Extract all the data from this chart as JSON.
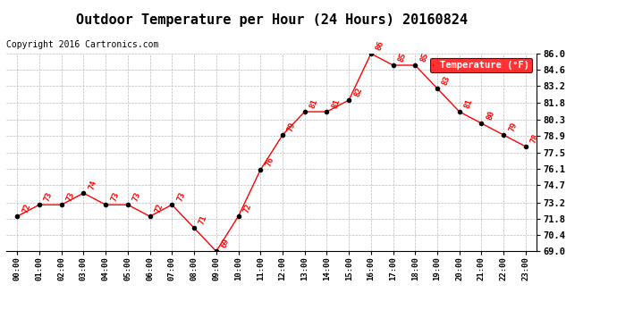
{
  "title": "Outdoor Temperature per Hour (24 Hours) 20160824",
  "copyright": "Copyright 2016 Cartronics.com",
  "legend_label": "Temperature (°F)",
  "hours": [
    0,
    1,
    2,
    3,
    4,
    5,
    6,
    7,
    8,
    9,
    10,
    11,
    12,
    13,
    14,
    15,
    16,
    17,
    18,
    19,
    20,
    21,
    22,
    23
  ],
  "temps": [
    72,
    73,
    73,
    74,
    73,
    73,
    72,
    73,
    71,
    69,
    72,
    76,
    79,
    81,
    81,
    82,
    86,
    85,
    85,
    83,
    81,
    80,
    79,
    78
  ],
  "xlabels": [
    "00:00",
    "01:00",
    "02:00",
    "03:00",
    "04:00",
    "05:00",
    "06:00",
    "07:00",
    "08:00",
    "09:00",
    "10:00",
    "11:00",
    "12:00",
    "13:00",
    "14:00",
    "15:00",
    "16:00",
    "17:00",
    "18:00",
    "19:00",
    "20:00",
    "21:00",
    "22:00",
    "23:00"
  ],
  "ylim": [
    69.0,
    86.0
  ],
  "yticks": [
    69.0,
    70.4,
    71.8,
    73.2,
    74.7,
    76.1,
    77.5,
    78.9,
    80.3,
    81.8,
    83.2,
    84.6,
    86.0
  ],
  "line_color": "red",
  "marker_color": "black",
  "label_color": "red",
  "bg_color": "white",
  "grid_color": "#bbbbbb",
  "title_fontsize": 11,
  "copyright_fontsize": 7,
  "legend_bg": "red",
  "legend_text_color": "white"
}
